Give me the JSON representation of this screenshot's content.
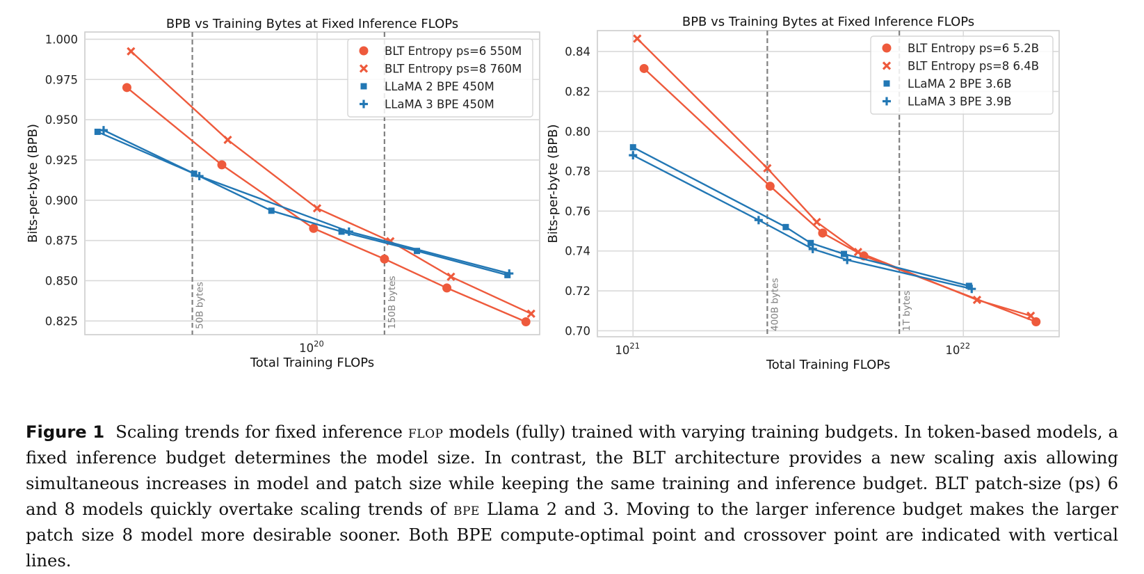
{
  "chart_data": [
    {
      "type": "line",
      "title": "BPB vs Training Bytes at Fixed Inference FLOPs",
      "xlabel": "Total Training FLOPs",
      "ylabel": "Bits-per-byte (BPB)",
      "xscale": "log",
      "xlim": [
        2.65e+19,
        3.57e+20
      ],
      "ylim": [
        0.8165,
        1.0045
      ],
      "yticks": [
        0.825,
        0.85,
        0.875,
        0.9,
        0.925,
        0.95,
        0.975,
        1.0
      ],
      "ytick_labels": [
        "0.825",
        "0.850",
        "0.875",
        "0.900",
        "0.925",
        "0.950",
        "0.975",
        "1.000"
      ],
      "xticks": [
        1e+20
      ],
      "xtick_labels": [
        "10",
        "20"
      ],
      "grid": true,
      "legend_position": "top-right",
      "vlines": [
        {
          "x": 4.9e+19,
          "label": "50B bytes"
        },
        {
          "x": 1.47e+20,
          "label": "150B bytes"
        }
      ],
      "series": [
        {
          "name": "BLT Entropy ps=6 550M",
          "color": "#ee5a3c",
          "marker": "circle",
          "points": [
            [
              3.37e+19,
              0.97
            ],
            [
              5.8e+19,
              0.922
            ],
            [
              9.8e+19,
              0.8825
            ],
            [
              1.47e+20,
              0.8635
            ],
            [
              2.1e+20,
              0.8455
            ],
            [
              3.3e+20,
              0.8245
            ]
          ]
        },
        {
          "name": "BLT Entropy ps=8 760M",
          "color": "#ee5a3c",
          "marker": "x",
          "points": [
            [
              3.45e+19,
              0.9925
            ],
            [
              6e+19,
              0.9375
            ],
            [
              1e+20,
              0.895
            ],
            [
              1.52e+20,
              0.8745
            ],
            [
              2.15e+20,
              0.8525
            ],
            [
              3.4e+20,
              0.8295
            ]
          ]
        },
        {
          "name": "LLaMA 2 BPE 450M",
          "color": "#2277b4",
          "marker": "square",
          "points": [
            [
              2.85e+19,
              0.9425
            ],
            [
              4.95e+19,
              0.9165
            ],
            [
              7.7e+19,
              0.8935
            ],
            [
              1.15e+20,
              0.8805
            ],
            [
              1.77e+20,
              0.8685
            ],
            [
              2.97e+20,
              0.8535
            ]
          ]
        },
        {
          "name": "LLaMA 3 BPE 450M",
          "color": "#2277b4",
          "marker": "plus",
          "points": [
            [
              2.95e+19,
              0.9435
            ],
            [
              5.1e+19,
              0.915
            ],
            [
              1.2e+20,
              0.8805
            ],
            [
              3e+20,
              0.8545
            ]
          ]
        }
      ]
    },
    {
      "type": "line",
      "title": "BPB vs Training Bytes at Fixed Inference FLOPs",
      "xlabel": "Total Training FLOPs",
      "ylabel": "Bits-per-byte (BPB)",
      "xscale": "log",
      "xlim": [
        7.8e+20,
        1.95e+22
      ],
      "ylim": [
        0.697,
        0.8505
      ],
      "yticks": [
        0.7,
        0.72,
        0.74,
        0.76,
        0.78,
        0.8,
        0.82,
        0.84
      ],
      "ytick_labels": [
        "0.70",
        "0.72",
        "0.74",
        "0.76",
        "0.78",
        "0.80",
        "0.82",
        "0.84"
      ],
      "xticks": [
        1e+21,
        1e+22
      ],
      "xtick_labels": [
        "10",
        "21",
        "10",
        "22"
      ],
      "grid": true,
      "legend_position": "top-right",
      "vlines": [
        {
          "x": 2.55e+21,
          "label": "400B bytes"
        },
        {
          "x": 6.4e+21,
          "label": "1T bytes"
        }
      ],
      "series": [
        {
          "name": "BLT Entropy ps=6 5.2B",
          "color": "#ee5a3c",
          "marker": "circle",
          "points": [
            [
              1.08e+21,
              0.8315
            ],
            [
              2.6e+21,
              0.7725
            ],
            [
              3.75e+21,
              0.749
            ],
            [
              5e+21,
              0.7375
            ],
            [
              1.66e+22,
              0.7045
            ]
          ]
        },
        {
          "name": "BLT Entropy ps=8 6.4B",
          "color": "#ee5a3c",
          "marker": "x",
          "points": [
            [
              1.03e+21,
              0.8465
            ],
            [
              2.55e+21,
              0.7815
            ],
            [
              3.6e+21,
              0.7545
            ],
            [
              4.8e+21,
              0.7395
            ],
            [
              1.1e+22,
              0.7155
            ],
            [
              1.6e+22,
              0.7075
            ]
          ]
        },
        {
          "name": "LLaMA 2 BPE 3.6B",
          "color": "#2277b4",
          "marker": "square",
          "points": [
            [
              1e+21,
              0.792
            ],
            [
              2.9e+21,
              0.752
            ],
            [
              3.45e+21,
              0.744
            ],
            [
              4.35e+21,
              0.7385
            ],
            [
              1.04e+22,
              0.7225
            ]
          ]
        },
        {
          "name": "LLaMA 3 BPE 3.9B",
          "color": "#2277b4",
          "marker": "plus",
          "points": [
            [
              1e+21,
              0.788
            ],
            [
              2.4e+21,
              0.7555
            ],
            [
              3.5e+21,
              0.741
            ],
            [
              4.45e+21,
              0.7355
            ],
            [
              1.06e+22,
              0.721
            ]
          ]
        }
      ]
    }
  ],
  "caption": {
    "figure_label": "Figure 1",
    "t1": "Scaling trends for fixed inference",
    "sc1": "flop",
    "t2": "models (fully) trained with varying training budgets. In token-based models, a fixed inference budget determines the model size. In contrast, the BLT architecture provides a new scaling axis allowing simultaneous increases in model and patch size while keeping the same training and inference budget. BLT patch-size (ps) 6 and 8 models quickly overtake scaling trends of",
    "sc2": "bpe",
    "t3": "Llama 2 and 3. Moving to the larger inference budget makes the larger patch size 8 model more desirable sooner. Both BPE compute-optimal point and crossover point are indicated with vertical lines."
  }
}
